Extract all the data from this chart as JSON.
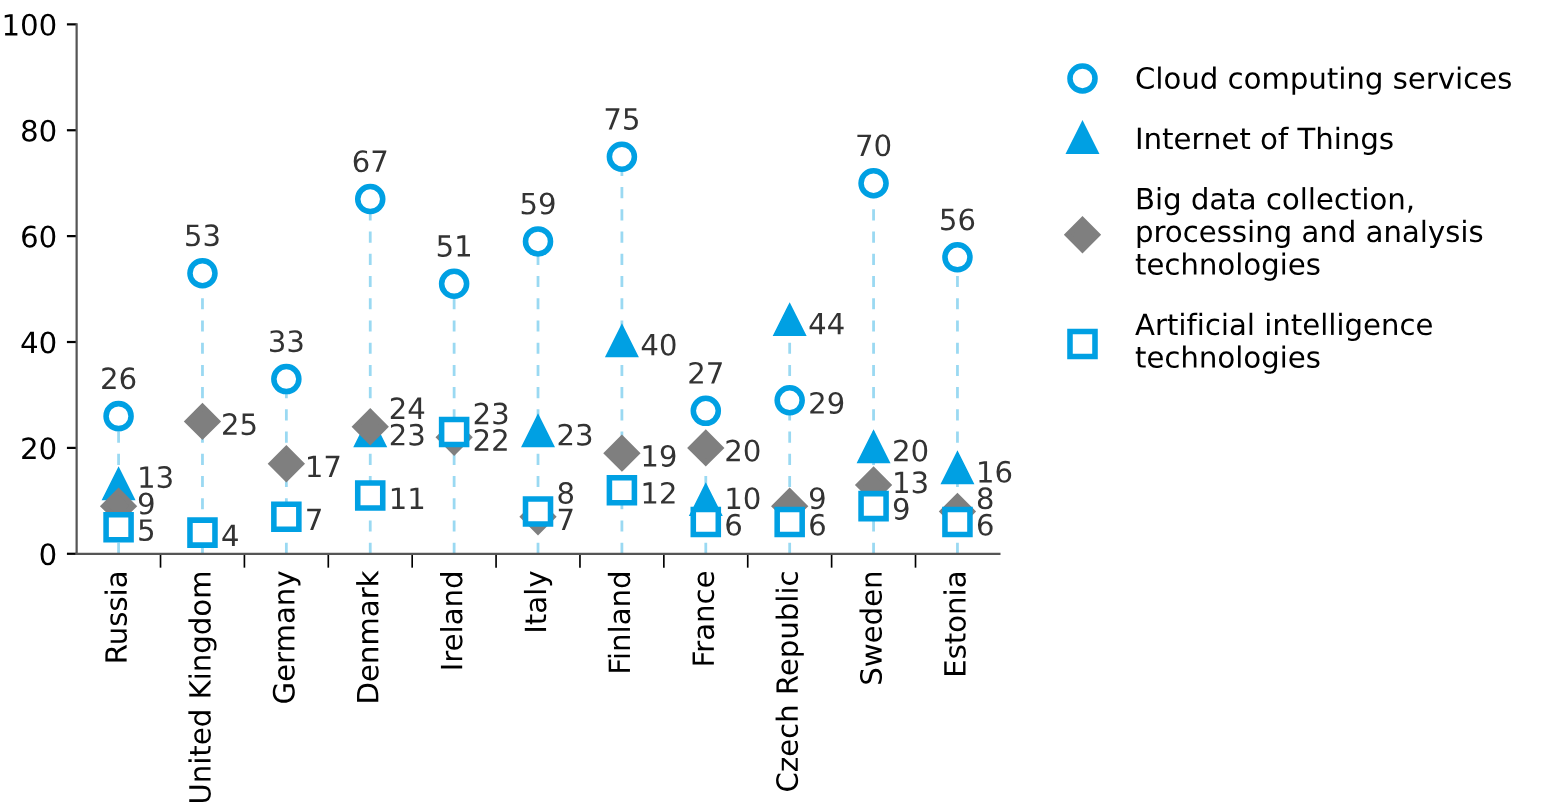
{
  "chart_data": {
    "type": "scatter",
    "categories": [
      "Russia",
      "United Kingdom",
      "Germany",
      "Denmark",
      "Ireland",
      "Italy",
      "Finland",
      "France",
      "Czech Republic",
      "Sweden",
      "Estonia"
    ],
    "series": [
      {
        "name": "Cloud computing services",
        "color": "#00a0e3",
        "marker": "circle",
        "values": [
          26,
          53,
          33,
          67,
          51,
          59,
          75,
          27,
          29,
          70,
          56
        ]
      },
      {
        "name": "Internet of Things",
        "color": "#00a0e3",
        "marker": "triangle",
        "values": [
          13,
          null,
          null,
          23,
          null,
          23,
          40,
          10,
          44,
          20,
          16
        ]
      },
      {
        "name": "Big data collection,\nprocessing and analysis\ntechnologies",
        "color": "#7f7f7f",
        "marker": "diamond",
        "values": [
          9,
          25,
          17,
          24,
          22,
          7,
          19,
          20,
          9,
          13,
          8
        ]
      },
      {
        "name": "Artificial intelligence\ntechnologies",
        "color": "#00a0e3",
        "marker": "square",
        "values": [
          5,
          4,
          7,
          11,
          23,
          8,
          12,
          6,
          6,
          9,
          6
        ]
      }
    ],
    "ylim": [
      0,
      100
    ],
    "yticks": [
      0,
      20,
      40,
      60,
      80,
      100
    ],
    "data_labels": true,
    "legend": "right",
    "grid": false
  }
}
